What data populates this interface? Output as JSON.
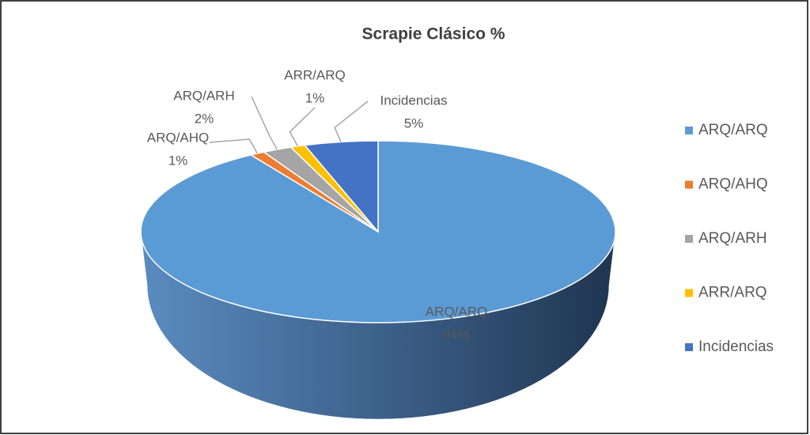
{
  "chart_data": {
    "type": "pie",
    "title": "Scrapie Clásico %",
    "categories": [
      "ARQ/ARQ",
      "ARQ/AHQ",
      "ARQ/ARH",
      "ARR/ARQ",
      "Incidencias"
    ],
    "values": [
      91,
      1,
      2,
      1,
      5
    ],
    "value_labels": [
      "91%",
      "1%",
      "2%",
      "1%",
      "5%"
    ],
    "colors": [
      "#5b9bd5",
      "#ed7d31",
      "#a5a5a5",
      "#ffc000",
      "#4472c4"
    ],
    "legend": "right"
  }
}
